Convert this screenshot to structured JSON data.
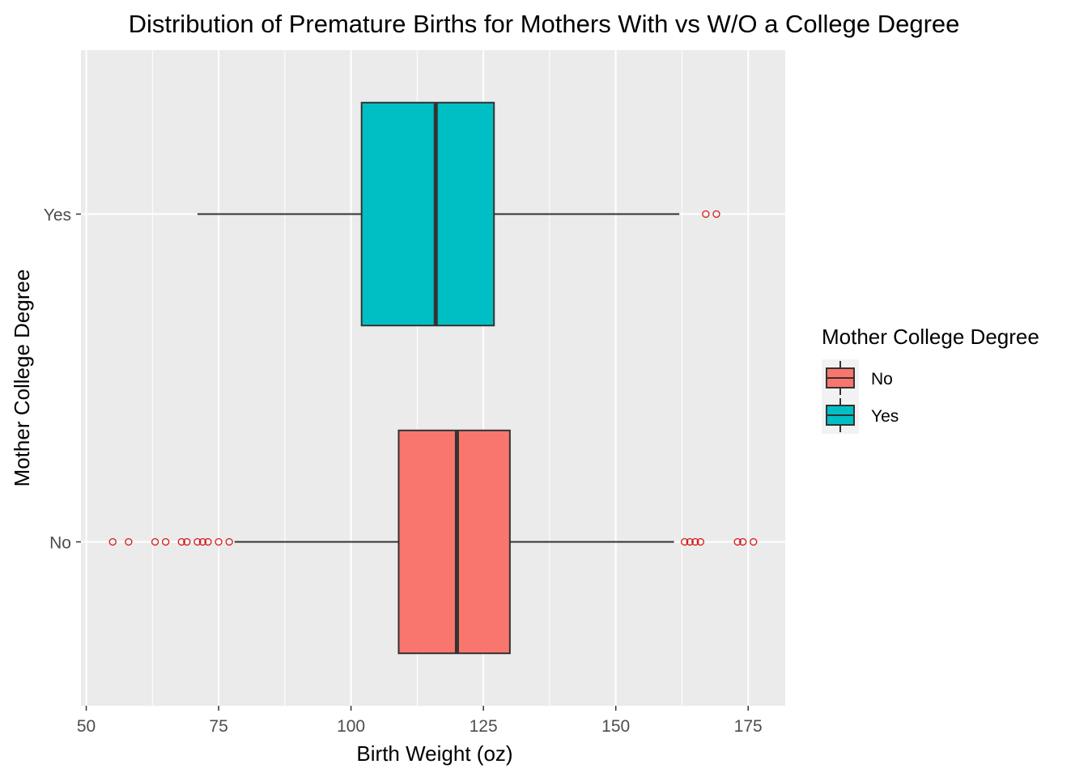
{
  "chart_data": {
    "type": "boxplot",
    "orientation": "horizontal",
    "title": "Distribution of Premature Births for Mothers With vs W/O a College Degree",
    "xlabel": "Birth Weight (oz)",
    "ylabel": "Mother College Degree",
    "xlim": [
      49,
      182
    ],
    "x_ticks": [
      50,
      75,
      100,
      125,
      150,
      175
    ],
    "categories": [
      "No",
      "Yes"
    ],
    "grid": true,
    "legend": {
      "title": "Mother College Degree",
      "position": "right"
    },
    "series": [
      {
        "name": "No",
        "color": "#F8766D",
        "whisker_low": 78,
        "q1": 109,
        "median": 120,
        "q3": 130,
        "whisker_high": 161,
        "outliers": [
          55,
          58,
          63,
          65,
          68,
          69,
          71,
          72,
          73,
          75,
          77,
          163,
          164,
          165,
          166,
          173,
          174,
          176
        ]
      },
      {
        "name": "Yes",
        "color": "#00BFC4",
        "whisker_low": 71,
        "q1": 102,
        "median": 116,
        "q3": 127,
        "whisker_high": 162,
        "outliers": [
          167,
          169
        ]
      }
    ],
    "colors": {
      "panel_bg": "#EBEBEB",
      "grid": "#FFFFFF",
      "outline": "#333333",
      "outlier": "#D7191C"
    }
  }
}
